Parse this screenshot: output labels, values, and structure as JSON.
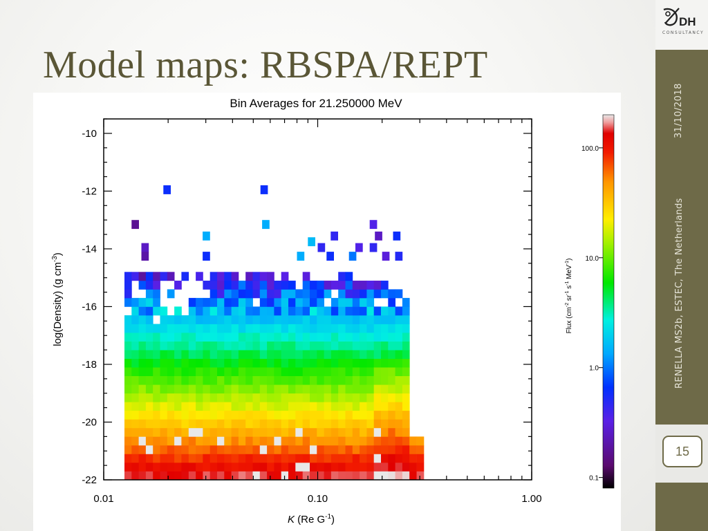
{
  "slide": {
    "title": "Model maps: RBSPA/REPT",
    "date": "31/10/2018",
    "event": "RENELLA MS2b, ESTEC, The Netherlands",
    "page_number": "15",
    "logo_text": "DH",
    "logo_subtext": "CONSULTANCY"
  },
  "colors": {
    "sidebar": "#6e6a48",
    "title": "#5a5636",
    "accent_text": "#e6e4d8"
  },
  "chart_data": {
    "type": "heatmap",
    "title": "Bin Averages for 21.250000 MeV",
    "xlabel": "K (Re G^-1)",
    "ylabel": "log(Density) (g cm^-3)",
    "x_scale": "log",
    "xlim": [
      0.01,
      1.0
    ],
    "ylim": [
      -22,
      -9.5
    ],
    "x_ticks": [
      "0.01",
      "0.10",
      "1.00"
    ],
    "y_ticks": [
      "-10",
      "-12",
      "-14",
      "-16",
      "-18",
      "-20",
      "-22"
    ],
    "grid": false,
    "bin_dlog10_k": 0.0333,
    "bin_dlogrho": 0.3,
    "colorbar": {
      "label": "Flux (cm^-2 sr^-1 s^-1 MeV^-1)",
      "scale": "log",
      "range": [
        0.08,
        200
      ],
      "ticks": [
        "100.0",
        "10.0",
        "1.0",
        "0.1"
      ]
    },
    "profile": {
      "k_start": 0.0125,
      "k_end_dense": 0.25,
      "k_end_sparse": 0.3,
      "logrho_bottom": -22.0,
      "logflux_at_bottom": 2.15,
      "logflux_at_minus16": 0.05,
      "logflux_top_region": -0.6
    },
    "sparse_bins": [
      {
        "k": 0.019,
        "logrho": -12.1,
        "flux": 0.6
      },
      {
        "k": 0.054,
        "logrho": -12.1,
        "flux": 0.6
      },
      {
        "k": 0.0135,
        "logrho": -13.3,
        "flux": 0.17
      },
      {
        "k": 0.055,
        "logrho": -13.3,
        "flux": 1.4
      },
      {
        "k": 0.029,
        "logrho": -13.7,
        "flux": 1.4
      },
      {
        "k": 0.115,
        "logrho": -13.7,
        "flux": 0.45
      },
      {
        "k": 0.175,
        "logrho": -13.3,
        "flux": 0.35
      },
      {
        "k": 0.185,
        "logrho": -13.7,
        "flux": 0.25
      },
      {
        "k": 0.225,
        "logrho": -13.7,
        "flux": 0.6
      },
      {
        "k": 0.015,
        "logrho": -14.1,
        "flux": 0.25
      },
      {
        "k": 0.09,
        "logrho": -13.9,
        "flux": 1.6
      },
      {
        "k": 0.1,
        "logrho": -14.1,
        "flux": 0.45
      },
      {
        "k": 0.15,
        "logrho": -14.1,
        "flux": 0.35
      },
      {
        "k": 0.175,
        "logrho": -14.1,
        "flux": 0.45
      },
      {
        "k": 0.015,
        "logrho": -14.4,
        "flux": 0.2
      },
      {
        "k": 0.029,
        "logrho": -14.4,
        "flux": 0.6
      },
      {
        "k": 0.08,
        "logrho": -14.4,
        "flux": 1.4
      },
      {
        "k": 0.11,
        "logrho": -14.4,
        "flux": 0.6
      },
      {
        "k": 0.14,
        "logrho": -14.4,
        "flux": 1.0
      },
      {
        "k": 0.2,
        "logrho": -14.4,
        "flux": 0.3
      },
      {
        "k": 0.23,
        "logrho": -14.4,
        "flux": 0.5
      }
    ]
  }
}
